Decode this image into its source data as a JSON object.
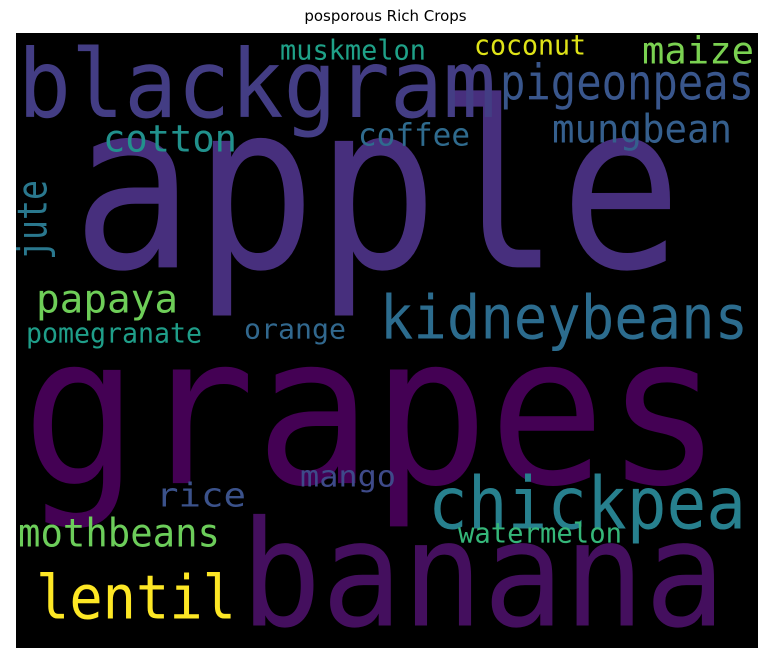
{
  "chart_data": {
    "type": "wordcloud",
    "title": "posporous Rich Crops",
    "background": "#000000",
    "words": [
      {
        "text": "grapes",
        "color": "#440154"
      },
      {
        "text": "apple",
        "color": "#472f7d"
      },
      {
        "text": "banana",
        "color": "#440f5e"
      },
      {
        "text": "blackgram",
        "color": "#433d84"
      },
      {
        "text": "chickpea",
        "color": "#27808e"
      },
      {
        "text": "kidneybeans",
        "color": "#2c6c8e"
      },
      {
        "text": "lentil",
        "color": "#fde725"
      },
      {
        "text": "pigeonpeas",
        "color": "#39568c"
      },
      {
        "text": "mothbeans",
        "color": "#6ccd5a"
      },
      {
        "text": "maize",
        "color": "#7ad151"
      },
      {
        "text": "mungbean",
        "color": "#355f8d"
      },
      {
        "text": "papaya",
        "color": "#6ece58"
      },
      {
        "text": "cotton",
        "color": "#21918c"
      },
      {
        "text": "rice",
        "color": "#3b528b"
      },
      {
        "text": "coffee",
        "color": "#2f6b8e"
      },
      {
        "text": "mango",
        "color": "#3e4a89"
      },
      {
        "text": "coconut",
        "color": "#dfe318"
      },
      {
        "text": "muskmelon",
        "color": "#1fa188"
      },
      {
        "text": "watermelon",
        "color": "#35b779"
      },
      {
        "text": "pomegranate",
        "color": "#1f9e89"
      },
      {
        "text": "orange",
        "color": "#31688e"
      },
      {
        "text": "jute",
        "color": "#2a788e"
      }
    ]
  }
}
